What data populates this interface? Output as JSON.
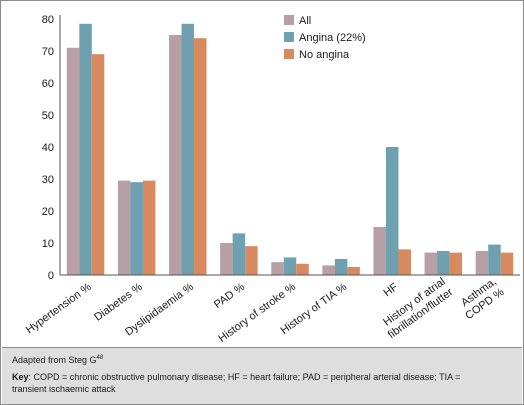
{
  "chart_data": {
    "type": "bar",
    "title": "",
    "xlabel": "",
    "ylabel": "",
    "ylim": [
      0,
      80
    ],
    "yticks": [
      "0",
      "10",
      "20",
      "30",
      "40",
      "50",
      "60",
      "70",
      "80"
    ],
    "categories": [
      [
        "Hypertension %"
      ],
      [
        "Diabetes %"
      ],
      [
        "Dyslipidaemia %"
      ],
      [
        "PAD %"
      ],
      [
        "History of stroke %"
      ],
      [
        "History of TIA %"
      ],
      [
        "HF"
      ],
      [
        "History of atrial",
        "fibrillation/flutter"
      ],
      [
        "Asthma,",
        "COPD %"
      ]
    ],
    "series": [
      {
        "name": "All",
        "color": "#b79fa6",
        "values": [
          71,
          29.5,
          75,
          10,
          4,
          3,
          15,
          7,
          7.5
        ]
      },
      {
        "name": "Angina (22%)",
        "color": "#6ea0b0",
        "values": [
          78.5,
          29,
          78.5,
          13,
          5.5,
          5,
          40,
          7.5,
          9.5
        ]
      },
      {
        "name": "No angina",
        "color": "#d9895e",
        "values": [
          69,
          29.5,
          74,
          9,
          3.5,
          2.5,
          8,
          7,
          7
        ]
      }
    ],
    "grid": false,
    "legend_position": "top-right"
  },
  "footer": {
    "source_text": "Adapted from Steg G",
    "source_ref": "48",
    "key_label": "Key",
    "key_text": ": COPD = chronic obstructive pulmonary disease; HF = heart failure; PAD = peripheral arterial disease; TIA = transient ischaemic attack"
  }
}
